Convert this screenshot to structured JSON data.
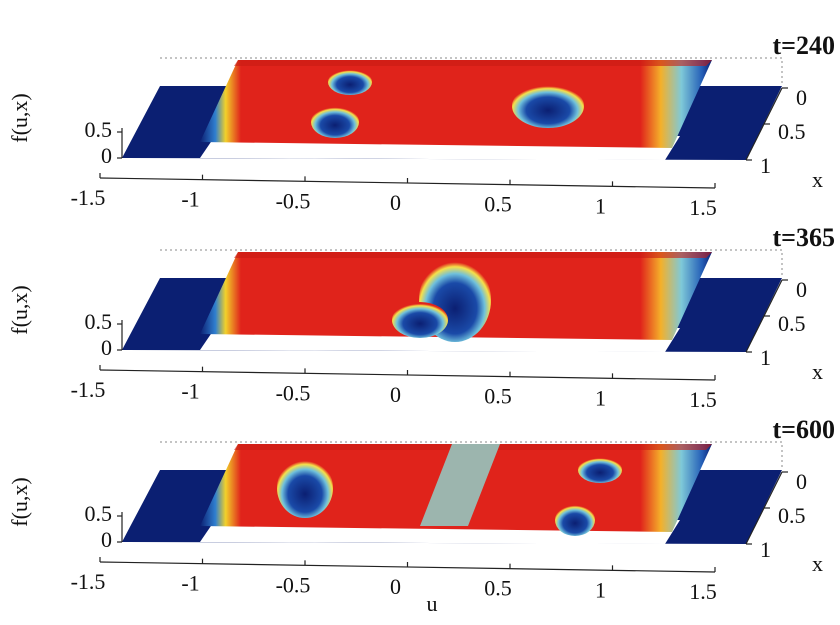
{
  "chart_data": [
    {
      "type": "surface",
      "title": "t=240",
      "ylabel": "f(u,x)",
      "zlabel": "x",
      "xlim": [
        -1.5,
        1.5
      ],
      "xticks": [
        -1.5,
        -1,
        -0.5,
        0,
        0.5,
        1,
        1.5
      ],
      "ylim": [
        0,
        0.5
      ],
      "yticks": [
        0,
        0.5
      ],
      "zlim": [
        0,
        1
      ],
      "zticks": [
        0,
        0.5,
        1
      ]
    },
    {
      "type": "surface",
      "title": "t=365",
      "ylabel": "f(u,x)",
      "zlabel": "x",
      "xlim": [
        -1.5,
        1.5
      ],
      "xticks": [
        -1.5,
        -1,
        -0.5,
        0,
        0.5,
        1,
        1.5
      ],
      "ylim": [
        0,
        0.5
      ],
      "yticks": [
        0,
        0.5
      ],
      "zlim": [
        0,
        1
      ],
      "zticks": [
        0,
        0.5,
        1
      ]
    },
    {
      "type": "surface",
      "title": "t=600",
      "ylabel": "f(u,x)",
      "zlabel": "x",
      "xlabel": "u",
      "xlim": [
        -1.5,
        1.5
      ],
      "xticks": [
        -1.5,
        -1,
        -0.5,
        0,
        0.5,
        1,
        1.5
      ],
      "ylim": [
        0,
        0.5
      ],
      "yticks": [
        0,
        0.5
      ],
      "zlim": [
        0,
        1
      ],
      "zticks": [
        0,
        0.5,
        1
      ]
    }
  ]
}
